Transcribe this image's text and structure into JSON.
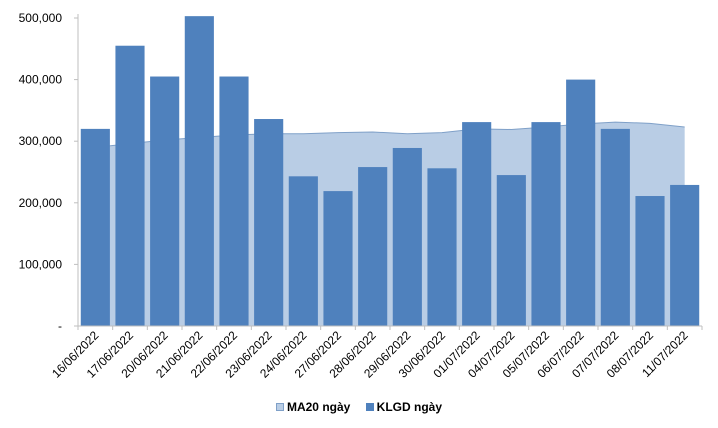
{
  "chart_data": {
    "type": "bar",
    "categories": [
      "16/06/2022",
      "17/06/2022",
      "20/06/2022",
      "21/06/2022",
      "22/06/2022",
      "23/06/2022",
      "24/06/2022",
      "27/06/2022",
      "28/06/2022",
      "29/06/2022",
      "30/06/2022",
      "01/07/2022",
      "04/07/2022",
      "05/07/2022",
      "06/07/2022",
      "07/07/2022",
      "08/07/2022",
      "11/07/2022"
    ],
    "series": [
      {
        "name": "MA20 ngày",
        "kind": "area",
        "color": "#B9CDE5",
        "edge_color": "#7FA0C8",
        "values": [
          290000,
          296000,
          302000,
          306000,
          310000,
          312000,
          312000,
          314000,
          315000,
          312000,
          314000,
          320000,
          319000,
          323000,
          328000,
          331000,
          329000,
          323000
        ]
      },
      {
        "name": "KLGD ngày",
        "kind": "bar",
        "color": "#4F81BD",
        "values": [
          320000,
          455000,
          405000,
          503000,
          405000,
          336000,
          243000,
          219000,
          258000,
          289000,
          256000,
          331000,
          245000,
          331000,
          400000,
          320000,
          211000,
          229000
        ]
      }
    ],
    "y_ticks": [
      {
        "value": 0,
        "label": "-"
      },
      {
        "value": 100000,
        "label": "100,000"
      },
      {
        "value": 200000,
        "label": "200,000"
      },
      {
        "value": 300000,
        "label": "300,000"
      },
      {
        "value": 400000,
        "label": "400,000"
      },
      {
        "value": 500000,
        "label": "500,000"
      }
    ],
    "ylim": [
      0,
      500000
    ],
    "grid": false,
    "legend_position": "bottom"
  }
}
